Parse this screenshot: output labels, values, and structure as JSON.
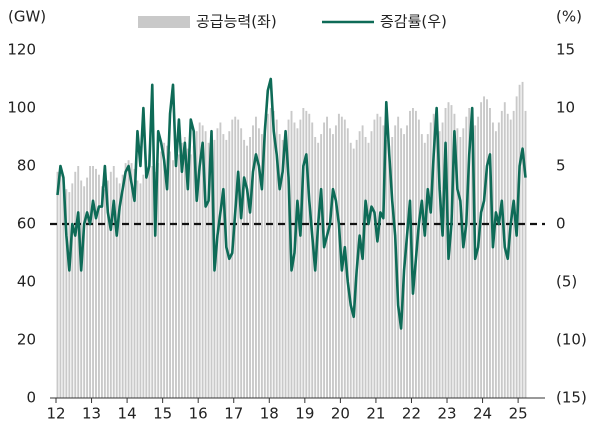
{
  "chart_data": {
    "type": "bar-line",
    "legend_position": "top",
    "y_label": "(GW)",
    "y2_label": "(%)",
    "categories": [
      "12",
      null,
      null,
      null,
      null,
      null,
      null,
      null,
      null,
      null,
      null,
      null,
      "13",
      null,
      null,
      null,
      null,
      null,
      null,
      null,
      null,
      null,
      null,
      null,
      "14",
      null,
      null,
      null,
      null,
      null,
      null,
      null,
      null,
      null,
      null,
      null,
      "15",
      null,
      null,
      null,
      null,
      null,
      null,
      null,
      null,
      null,
      null,
      null,
      "16",
      null,
      null,
      null,
      null,
      null,
      null,
      null,
      null,
      null,
      null,
      null,
      "17",
      null,
      null,
      null,
      null,
      null,
      null,
      null,
      null,
      null,
      null,
      null,
      "18",
      null,
      null,
      null,
      null,
      null,
      null,
      null,
      null,
      null,
      null,
      null,
      "19",
      null,
      null,
      null,
      null,
      null,
      null,
      null,
      null,
      null,
      null,
      null,
      "20",
      null,
      null,
      null,
      null,
      null,
      null,
      null,
      null,
      null,
      null,
      null,
      "21",
      null,
      null,
      null,
      null,
      null,
      null,
      null,
      null,
      null,
      null,
      null,
      "22",
      null,
      null,
      null,
      null,
      null,
      null,
      null,
      null,
      null,
      null,
      null,
      "23",
      null,
      null,
      null,
      null,
      null,
      null,
      null,
      null,
      null,
      null,
      null,
      "24",
      null,
      null,
      null,
      null,
      null,
      null,
      null,
      null,
      null,
      null,
      null,
      "25",
      null,
      null
    ],
    "series": [
      {
        "name": "공급능력(좌)",
        "type": "bar",
        "color": "#c9c9c9",
        "axis": "y",
        "values": [
          78,
          77,
          75,
          72,
          71,
          74,
          78,
          80,
          75,
          73,
          76,
          80,
          80,
          79,
          77,
          73,
          72,
          75,
          78,
          80,
          76,
          74,
          77,
          81,
          82,
          81,
          79,
          75,
          74,
          77,
          82,
          84,
          80,
          78,
          81,
          85,
          88,
          87,
          85,
          82,
          80,
          84,
          88,
          90,
          86,
          84,
          87,
          92,
          95,
          94,
          92,
          88,
          86,
          89,
          93,
          95,
          91,
          89,
          92,
          96,
          97,
          96,
          93,
          89,
          87,
          90,
          94,
          97,
          93,
          91,
          94,
          98,
          100,
          99,
          96,
          91,
          89,
          92,
          96,
          99,
          95,
          93,
          96,
          100,
          99,
          98,
          95,
          90,
          88,
          91,
          95,
          97,
          93,
          91,
          94,
          98,
          97,
          96,
          93,
          88,
          86,
          89,
          92,
          94,
          90,
          88,
          92,
          96,
          98,
          97,
          94,
          89,
          87,
          90,
          94,
          97,
          93,
          91,
          94,
          99,
          100,
          99,
          96,
          91,
          88,
          91,
          95,
          98,
          94,
          92,
          95,
          100,
          102,
          101,
          98,
          93,
          90,
          93,
          97,
          100,
          96,
          94,
          97,
          102,
          104,
          103,
          100,
          95,
          92,
          95,
          99,
          102,
          98,
          96,
          99,
          104,
          108,
          109,
          99
        ]
      },
      {
        "name": "증감률(우)",
        "type": "line",
        "color": "#0e6b57",
        "axis": "y2",
        "values": [
          2.5,
          5,
          4,
          -1,
          -4,
          0,
          -1,
          1,
          -4,
          0,
          1,
          0,
          2,
          0.5,
          1.5,
          1.5,
          5,
          1,
          -0.5,
          2,
          -1,
          1.5,
          3,
          4.5,
          5,
          3.5,
          2,
          8,
          5,
          10,
          4,
          5,
          12,
          -1,
          8,
          7,
          5.5,
          3,
          9.5,
          12,
          5,
          9,
          4.5,
          7,
          3,
          9,
          8,
          2,
          5,
          7,
          1.5,
          2,
          8,
          -4,
          -1,
          1,
          3,
          -2,
          -3,
          -2.5,
          1,
          4.5,
          0.5,
          4,
          3,
          1,
          4.5,
          6,
          5,
          3,
          8,
          11.5,
          12.5,
          8,
          6,
          3,
          4.5,
          8,
          4,
          -4,
          -2.5,
          2,
          -1,
          5,
          6,
          2,
          -1,
          -4,
          0,
          3,
          -2,
          -1,
          0,
          3,
          2,
          0,
          -4,
          -2,
          -5,
          -7,
          -8,
          -4,
          -1,
          -3,
          2,
          0,
          1.5,
          1,
          -1.5,
          1,
          0.5,
          10.5,
          6,
          2,
          -1,
          -7,
          -9,
          -4,
          -1,
          2,
          -6,
          -3,
          0,
          2,
          -1,
          3,
          1,
          6,
          10,
          3,
          -1,
          7,
          -3,
          0,
          8,
          3,
          2,
          -2,
          0,
          6,
          10,
          -3,
          -2,
          1,
          2,
          5,
          6,
          -2,
          1,
          0,
          2,
          -2,
          -3,
          0,
          2,
          -1,
          5,
          6.5,
          4
        ]
      }
    ],
    "ylim": [
      0,
      120
    ],
    "yticks": [
      0,
      20,
      40,
      60,
      80,
      100,
      120
    ],
    "y2lim": [
      -15,
      15
    ],
    "y2ticks": [
      15,
      10,
      5,
      0,
      {
        "value": -5,
        "label": "(5)"
      },
      {
        "value": -10,
        "label": "(10)"
      },
      {
        "value": -15,
        "label": "(15)"
      }
    ],
    "reference_line": {
      "value": 0,
      "axis": "y2",
      "style": "dashed",
      "color": "#111111"
    },
    "grid": false
  }
}
